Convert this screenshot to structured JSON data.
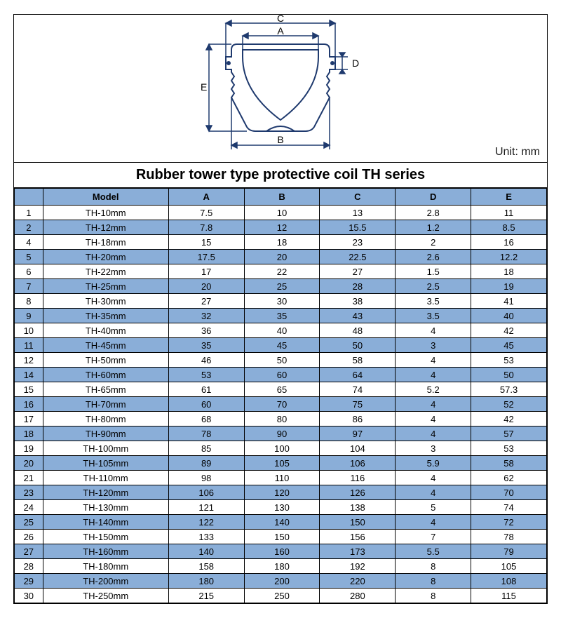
{
  "unit_label": "Unit: mm",
  "title": "Rubber tower type protective coil TH series",
  "diagram": {
    "labels": {
      "A": "A",
      "B": "B",
      "C": "C",
      "D": "D",
      "E": "E"
    },
    "stroke_color": "#1f3a6e",
    "stroke_width": 2
  },
  "table": {
    "header_bg": "#8aaed8",
    "alt_bg": "#8aaed8",
    "columns": [
      "",
      "Model",
      "A",
      "B",
      "C",
      "D",
      "E"
    ],
    "rows": [
      {
        "idx": "1",
        "model": "TH-10mm",
        "A": "7.5",
        "B": "10",
        "C": "13",
        "D": "2.8",
        "E": "11"
      },
      {
        "idx": "2",
        "model": "TH-12mm",
        "A": "7.8",
        "B": "12",
        "C": "15.5",
        "D": "1.2",
        "E": "8.5"
      },
      {
        "idx": "4",
        "model": "TH-18mm",
        "A": "15",
        "B": "18",
        "C": "23",
        "D": "2",
        "E": "16"
      },
      {
        "idx": "5",
        "model": "TH-20mm",
        "A": "17.5",
        "B": "20",
        "C": "22.5",
        "D": "2.6",
        "E": "12.2"
      },
      {
        "idx": "6",
        "model": "TH-22mm",
        "A": "17",
        "B": "22",
        "C": "27",
        "D": "1.5",
        "E": "18"
      },
      {
        "idx": "7",
        "model": "TH-25mm",
        "A": "20",
        "B": "25",
        "C": "28",
        "D": "2.5",
        "E": "19"
      },
      {
        "idx": "8",
        "model": "TH-30mm",
        "A": "27",
        "B": "30",
        "C": "38",
        "D": "3.5",
        "E": "41"
      },
      {
        "idx": "9",
        "model": "TH-35mm",
        "A": "32",
        "B": "35",
        "C": "43",
        "D": "3.5",
        "E": "40"
      },
      {
        "idx": "10",
        "model": "TH-40mm",
        "A": "36",
        "B": "40",
        "C": "48",
        "D": "4",
        "E": "42"
      },
      {
        "idx": "11",
        "model": "TH-45mm",
        "A": "35",
        "B": "45",
        "C": "50",
        "D": "3",
        "E": "45"
      },
      {
        "idx": "12",
        "model": "TH-50mm",
        "A": "46",
        "B": "50",
        "C": "58",
        "D": "4",
        "E": "53"
      },
      {
        "idx": "14",
        "model": "TH-60mm",
        "A": "53",
        "B": "60",
        "C": "64",
        "D": "4",
        "E": "50"
      },
      {
        "idx": "15",
        "model": "TH-65mm",
        "A": "61",
        "B": "65",
        "C": "74",
        "D": "5.2",
        "E": "57.3"
      },
      {
        "idx": "16",
        "model": "TH-70mm",
        "A": "60",
        "B": "70",
        "C": "75",
        "D": "4",
        "E": "52"
      },
      {
        "idx": "17",
        "model": "TH-80mm",
        "A": "68",
        "B": "80",
        "C": "86",
        "D": "4",
        "E": "42"
      },
      {
        "idx": "18",
        "model": "TH-90mm",
        "A": "78",
        "B": "90",
        "C": "97",
        "D": "4",
        "E": "57"
      },
      {
        "idx": "19",
        "model": "TH-100mm",
        "A": "85",
        "B": "100",
        "C": "104",
        "D": "3",
        "E": "53"
      },
      {
        "idx": "20",
        "model": "TH-105mm",
        "A": "89",
        "B": "105",
        "C": "106",
        "D": "5.9",
        "E": "58"
      },
      {
        "idx": "21",
        "model": "TH-110mm",
        "A": "98",
        "B": "110",
        "C": "116",
        "D": "4",
        "E": "62"
      },
      {
        "idx": "23",
        "model": "TH-120mm",
        "A": "106",
        "B": "120",
        "C": "126",
        "D": "4",
        "E": "70"
      },
      {
        "idx": "24",
        "model": "TH-130mm",
        "A": "121",
        "B": "130",
        "C": "138",
        "D": "5",
        "E": "74"
      },
      {
        "idx": "25",
        "model": "TH-140mm",
        "A": "122",
        "B": "140",
        "C": "150",
        "D": "4",
        "E": "72"
      },
      {
        "idx": "26",
        "model": "TH-150mm",
        "A": "133",
        "B": "150",
        "C": "156",
        "D": "7",
        "E": "78"
      },
      {
        "idx": "27",
        "model": "TH-160mm",
        "A": "140",
        "B": "160",
        "C": "173",
        "D": "5.5",
        "E": "79"
      },
      {
        "idx": "28",
        "model": "TH-180mm",
        "A": "158",
        "B": "180",
        "C": "192",
        "D": "8",
        "E": "105"
      },
      {
        "idx": "29",
        "model": "TH-200mm",
        "A": "180",
        "B": "200",
        "C": "220",
        "D": "8",
        "E": "108"
      },
      {
        "idx": "30",
        "model": "TH-250mm",
        "A": "215",
        "B": "250",
        "C": "280",
        "D": "8",
        "E": "115"
      }
    ]
  }
}
